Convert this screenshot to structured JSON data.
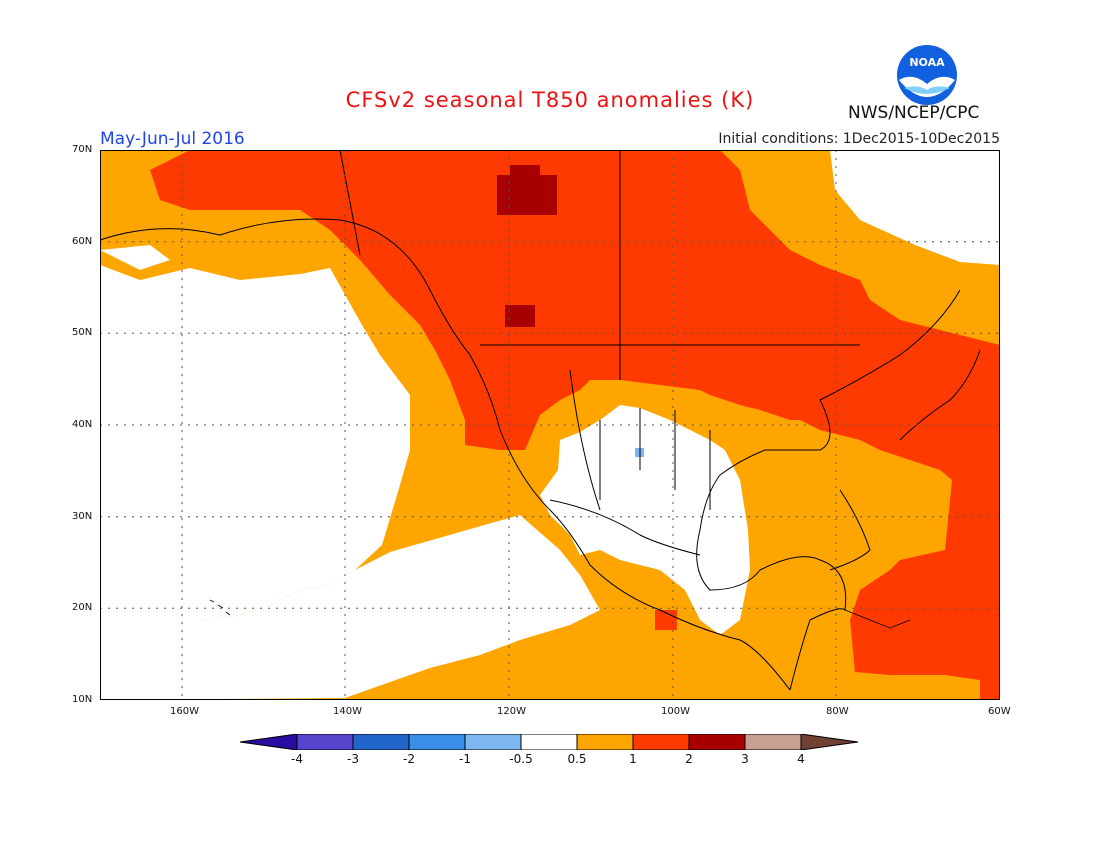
{
  "title": "CFSv2 seasonal T850 anomalies (K)",
  "period": "May-Jun-Jul 2016",
  "initial_conditions": "Initial conditions: 1Dec2015-10Dec2015",
  "organization": "NWS/NCEP/CPC",
  "logo_text": "NOAA",
  "lat_labels": [
    "70N",
    "60N",
    "50N",
    "40N",
    "30N",
    "20N",
    "10N"
  ],
  "lon_labels": [
    "160W",
    "140W",
    "120W",
    "100W",
    "80W",
    "60W"
  ],
  "colorbar": {
    "labels": [
      "-4",
      "-3",
      "-2",
      "-1",
      "-0.5",
      "0.5",
      "1",
      "2",
      "3",
      "4"
    ],
    "colors": [
      "#2a0da0",
      "#5544cc",
      "#2266cc",
      "#3b8ee8",
      "#7eb6f0",
      "#ffffff",
      "#ffa500",
      "#ff3a00",
      "#a80000",
      "#c8a090",
      "#704030"
    ]
  }
}
